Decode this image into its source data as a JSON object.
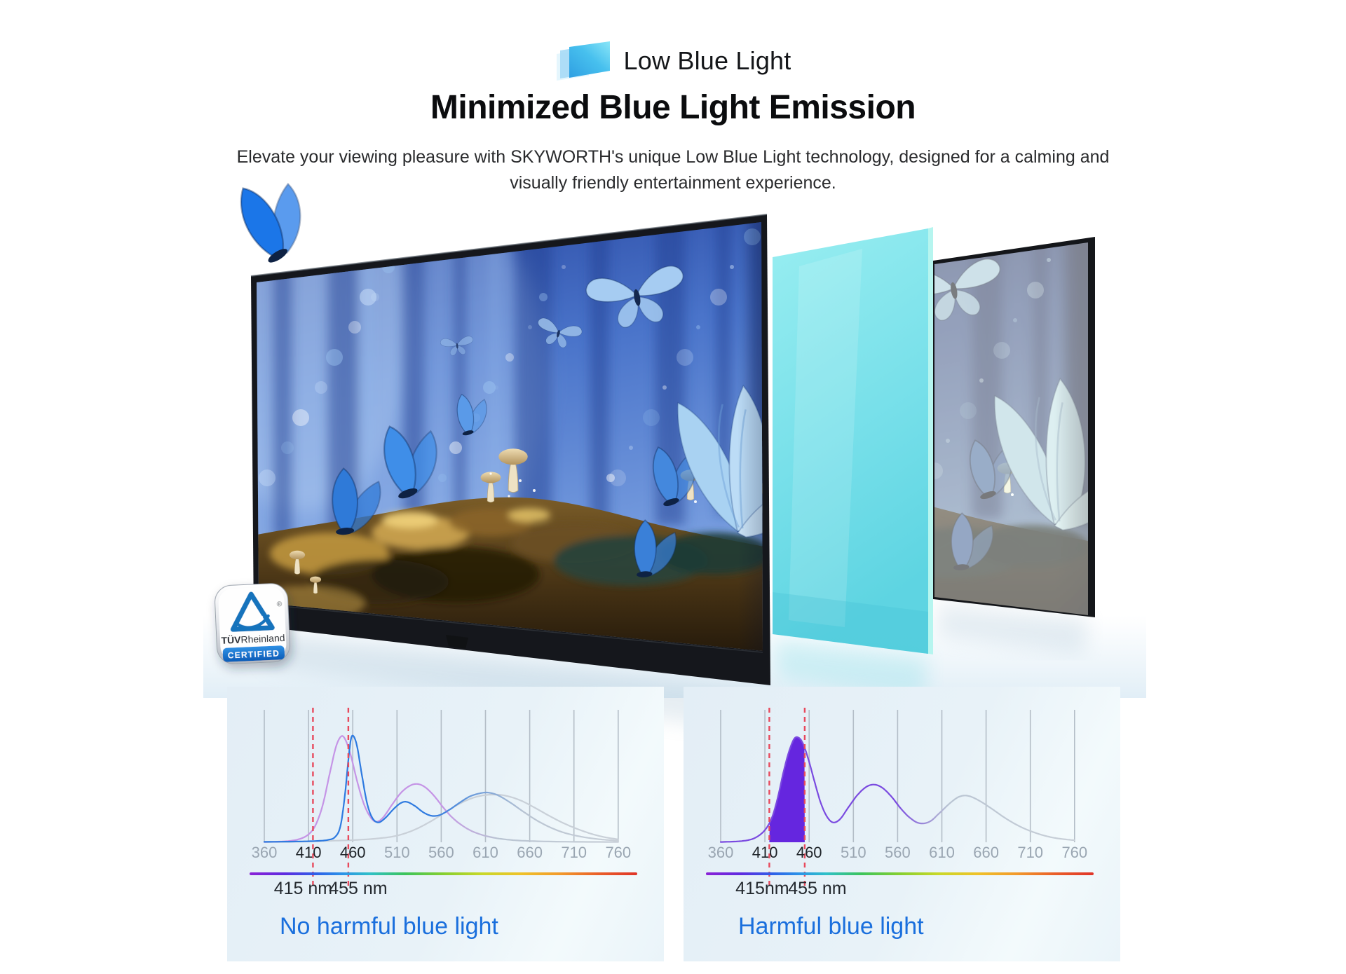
{
  "header": {
    "icon_name": "low-blue-light-layered-screens-icon",
    "icon_label": "Low Blue Light",
    "title": "Minimized Blue Light Emission",
    "subtitle_lines": [
      "Elevate your viewing pleasure with SKYWORTH's unique Low Blue Light technology, designed for a calming and",
      "visually friendly entertainment experience."
    ]
  },
  "hero": {
    "badge": {
      "brand_bold": "TÜV",
      "brand_rest": "Rheinland",
      "registered": "®",
      "label": "CERTIFIED",
      "brand_blue": "#1273bc"
    },
    "layers": [
      "tv-with-butterfly-forest-scene",
      "cyan-blue-light-filter-sheet",
      "washed-out-image-panel"
    ]
  },
  "chart_data": [
    {
      "type": "line",
      "title": "No harmful blue light",
      "caption_color": "#1a6fdd",
      "x_unit": "nm",
      "xlim": [
        360,
        760
      ],
      "ylim": [
        0,
        1
      ],
      "grid": "vertical",
      "x_ticks": [
        360,
        410,
        460,
        510,
        560,
        610,
        660,
        710,
        760
      ],
      "x_tick_emphasis": [
        410,
        460
      ],
      "spectrum_bar": true,
      "dashed_markers": [
        {
          "nm": 415,
          "label": "415 nm"
        },
        {
          "nm": 455,
          "label": "455 nm"
        }
      ],
      "series": [
        {
          "name": "gray-reference",
          "color": "#c9d0d8",
          "points": [
            [
              360,
              0.002
            ],
            [
              395,
              0.004
            ],
            [
              430,
              0.01
            ],
            [
              465,
              0.018
            ],
            [
              490,
              0.03
            ],
            [
              510,
              0.05
            ],
            [
              530,
              0.095
            ],
            [
              550,
              0.165
            ],
            [
              570,
              0.25
            ],
            [
              588,
              0.315
            ],
            [
              604,
              0.35
            ],
            [
              620,
              0.36
            ],
            [
              634,
              0.35
            ],
            [
              650,
              0.315
            ],
            [
              666,
              0.26
            ],
            [
              682,
              0.2
            ],
            [
              698,
              0.145
            ],
            [
              714,
              0.1
            ],
            [
              730,
              0.063
            ],
            [
              745,
              0.038
            ],
            [
              760,
              0.022
            ]
          ]
        },
        {
          "name": "violet-reference",
          "color": "#c594e6",
          "fade": {
            "start_nm": 558,
            "end_nm": 625
          },
          "points": [
            [
              360,
              0.002
            ],
            [
              385,
              0.008
            ],
            [
              400,
              0.025
            ],
            [
              410,
              0.06
            ],
            [
              418,
              0.13
            ],
            [
              426,
              0.28
            ],
            [
              434,
              0.52
            ],
            [
              441,
              0.72
            ],
            [
              447,
              0.8
            ],
            [
              452,
              0.77
            ],
            [
              458,
              0.65
            ],
            [
              465,
              0.46
            ],
            [
              472,
              0.3
            ],
            [
              479,
              0.2
            ],
            [
              486,
              0.155
            ],
            [
              494,
              0.185
            ],
            [
              504,
              0.28
            ],
            [
              514,
              0.37
            ],
            [
              524,
              0.425
            ],
            [
              533,
              0.44
            ],
            [
              542,
              0.415
            ],
            [
              552,
              0.35
            ],
            [
              562,
              0.265
            ],
            [
              572,
              0.19
            ],
            [
              583,
              0.13
            ],
            [
              596,
              0.08
            ],
            [
              612,
              0.045
            ],
            [
              632,
              0.022
            ],
            [
              658,
              0.01
            ],
            [
              700,
              0.004
            ],
            [
              760,
              0.002
            ]
          ]
        },
        {
          "name": "blue-display",
          "color": "#2e7ae0",
          "fade": {
            "start_nm": 548,
            "end_nm": 655
          },
          "points": [
            [
              360,
              0.003
            ],
            [
              400,
              0.006
            ],
            [
              420,
              0.01
            ],
            [
              432,
              0.018
            ],
            [
              440,
              0.04
            ],
            [
              446,
              0.12
            ],
            [
              451,
              0.35
            ],
            [
              455,
              0.62
            ],
            [
              458,
              0.78
            ],
            [
              461,
              0.8
            ],
            [
              465,
              0.72
            ],
            [
              470,
              0.52
            ],
            [
              476,
              0.3
            ],
            [
              482,
              0.185
            ],
            [
              489,
              0.15
            ],
            [
              497,
              0.185
            ],
            [
              506,
              0.25
            ],
            [
              514,
              0.295
            ],
            [
              521,
              0.305
            ],
            [
              530,
              0.275
            ],
            [
              540,
              0.225
            ],
            [
              549,
              0.2
            ],
            [
              558,
              0.205
            ],
            [
              568,
              0.24
            ],
            [
              580,
              0.295
            ],
            [
              592,
              0.345
            ],
            [
              604,
              0.37
            ],
            [
              613,
              0.375
            ],
            [
              624,
              0.355
            ],
            [
              638,
              0.3
            ],
            [
              652,
              0.235
            ],
            [
              668,
              0.165
            ],
            [
              684,
              0.11
            ],
            [
              700,
              0.07
            ],
            [
              720,
              0.04
            ],
            [
              740,
              0.022
            ],
            [
              760,
              0.012
            ]
          ]
        }
      ],
      "layout": {
        "caption_x": 75,
        "marker_label_dx": [
          -14,
          14
        ],
        "legend": "none"
      }
    },
    {
      "type": "line",
      "title": "Harmful blue light",
      "caption_color": "#1a6fdd",
      "x_unit": "nm",
      "xlim": [
        360,
        760
      ],
      "ylim": [
        0,
        1
      ],
      "grid": "vertical",
      "x_ticks": [
        360,
        410,
        460,
        510,
        560,
        610,
        660,
        710,
        760
      ],
      "x_tick_emphasis": [
        410,
        460
      ],
      "spectrum_bar": true,
      "dashed_markers": [
        {
          "nm": 415,
          "label": "415nm"
        },
        {
          "nm": 455,
          "label": "455 nm"
        }
      ],
      "series": [
        {
          "name": "violet-display",
          "color": "#7a4ae0",
          "fade": {
            "start_nm": 558,
            "end_nm": 618
          },
          "points": [
            [
              360,
              0.002
            ],
            [
              382,
              0.008
            ],
            [
              396,
              0.025
            ],
            [
              406,
              0.065
            ],
            [
              413,
              0.12
            ],
            [
              419,
              0.205
            ],
            [
              425,
              0.35
            ],
            [
              431,
              0.53
            ],
            [
              437,
              0.68
            ],
            [
              443,
              0.78
            ],
            [
              448,
              0.79
            ],
            [
              453,
              0.745
            ],
            [
              459,
              0.63
            ],
            [
              466,
              0.46
            ],
            [
              473,
              0.3
            ],
            [
              480,
              0.195
            ],
            [
              487,
              0.15
            ],
            [
              495,
              0.175
            ],
            [
              505,
              0.27
            ],
            [
              515,
              0.36
            ],
            [
              525,
              0.42
            ],
            [
              534,
              0.435
            ],
            [
              543,
              0.41
            ],
            [
              553,
              0.345
            ],
            [
              563,
              0.26
            ],
            [
              573,
              0.19
            ],
            [
              584,
              0.145
            ],
            [
              596,
              0.155
            ],
            [
              608,
              0.225
            ],
            [
              620,
              0.3
            ],
            [
              630,
              0.345
            ],
            [
              640,
              0.35
            ],
            [
              652,
              0.315
            ],
            [
              666,
              0.255
            ],
            [
              680,
              0.19
            ],
            [
              695,
              0.13
            ],
            [
              710,
              0.085
            ],
            [
              726,
              0.05
            ],
            [
              742,
              0.028
            ],
            [
              760,
              0.015
            ]
          ]
        }
      ],
      "filled_region": {
        "from_nm": 415,
        "to_nm": 455,
        "color": "#6526df",
        "series": "violet-display"
      },
      "layout": {
        "caption_x": 78,
        "marker_label_dx": [
          -10,
          18
        ],
        "legend": "none"
      }
    }
  ]
}
